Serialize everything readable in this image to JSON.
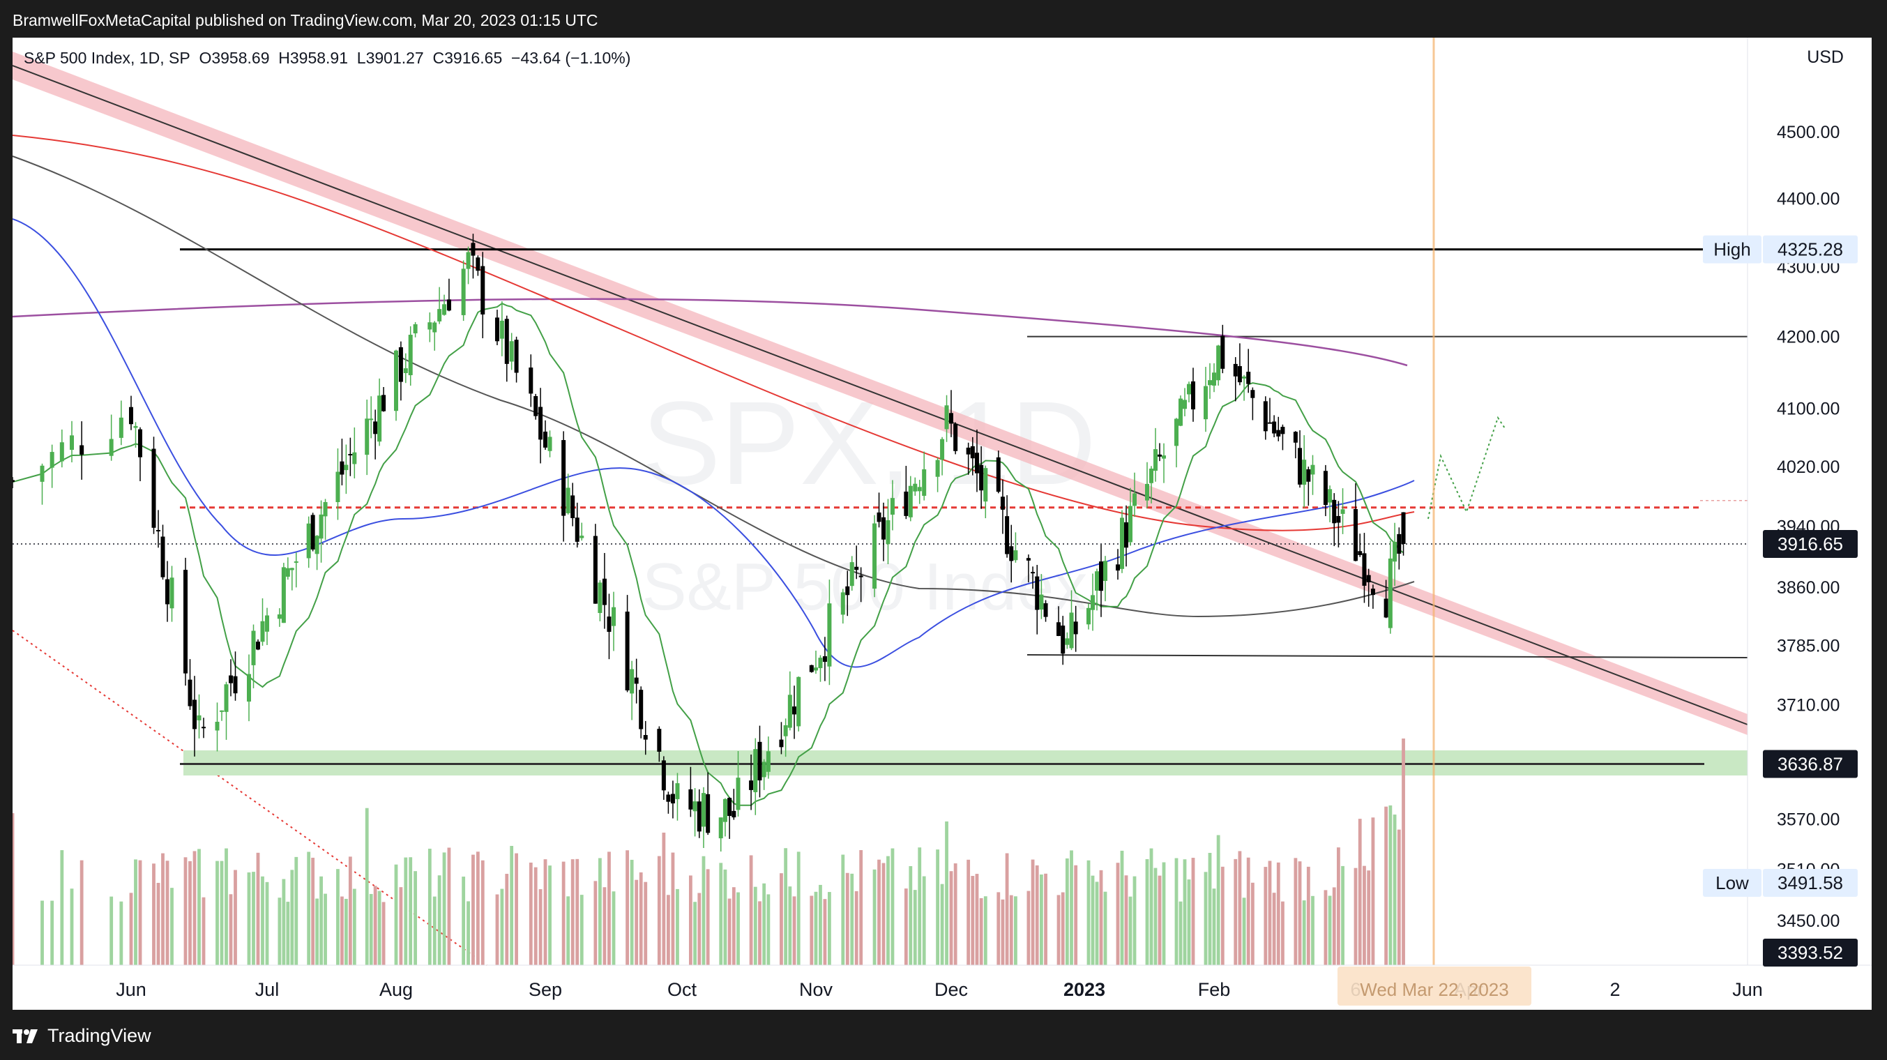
{
  "header": {
    "publisher": "BramwellFoxMetaCapital published on TradingView.com, Mar 20, 2023 01:15 UTC"
  },
  "footer": {
    "brand": "TradingView"
  },
  "legend": {
    "symbol": "S&P 500 Index, 1D, SP",
    "open": "O3958.69",
    "high": "H3958.91",
    "low": "L3901.27",
    "close": "C3916.65",
    "change": "−43.64 (−1.10%)"
  },
  "currency": "USD",
  "watermark": {
    "symbol": "SPX, 1D",
    "name": "S&P 500 Index"
  },
  "colors": {
    "up": "#4caf50",
    "down": "#000000",
    "vol_up": "#9fd49f",
    "vol_down": "#d9a0a0",
    "ma_green": "#43a047",
    "ma_blue": "#3b4fe0",
    "ma_black": "#555555",
    "ma_red": "#e53935",
    "ma_purple": "#9c4fa0",
    "resistance_red": "#e53935",
    "trend_band": "#f4b6bc",
    "support_band": "#c9e8c4",
    "crosshair": "#f5b26b"
  },
  "chart_data": {
    "type": "candlestick",
    "title": "S&P 500 Index, 1D, SP",
    "y_axis": {
      "ticks": [
        "4500.00",
        "4400.00",
        "4300.00",
        "4200.00",
        "4100.00",
        "4020.00",
        "3940.00",
        "3860.00",
        "3785.00",
        "3710.00",
        "3570.00",
        "3510.00",
        "3450.00"
      ],
      "log_scale": true
    },
    "x_axis": {
      "ticks": [
        "Jun",
        "Jul",
        "Aug",
        "Sep",
        "Oct",
        "Nov",
        "Dec",
        "2023",
        "Feb",
        "6",
        "Apr",
        "2",
        "Jun"
      ],
      "bold_tick": "2023",
      "crosshair_label": "Wed Mar 22, 2023"
    },
    "price_labels": [
      {
        "label": "High",
        "value": "4325.28"
      },
      {
        "label": "",
        "value": "3916.65"
      },
      {
        "label": "",
        "value": "3636.87"
      },
      {
        "label": "Low",
        "value": "3491.58"
      },
      {
        "label": "",
        "value": "3393.52"
      }
    ],
    "last_close": 3916.65,
    "levels": {
      "high_line": 4325.28,
      "resistance_4200": 4200,
      "dashed_red": 3965,
      "support_3773": 3773,
      "support_3636": 3636.87
    },
    "moving_averages": [
      "green (short)",
      "blue (50)",
      "black (100)",
      "red (200)",
      "purple (long)"
    ],
    "key_points": [
      {
        "date": "2022-06-01",
        "close": 4101
      },
      {
        "date": "2022-06-16",
        "close": 3667
      },
      {
        "date": "2022-08-16",
        "close": 4305
      },
      {
        "date": "2022-09-30",
        "close": 3586
      },
      {
        "date": "2022-10-13",
        "close": 3577
      },
      {
        "date": "2022-11-30",
        "close": 4080
      },
      {
        "date": "2022-12-28",
        "close": 3783
      },
      {
        "date": "2023-02-02",
        "close": 4179
      },
      {
        "date": "2023-03-13",
        "close": 3855
      },
      {
        "date": "2023-03-17",
        "close": 3916.65
      }
    ]
  }
}
